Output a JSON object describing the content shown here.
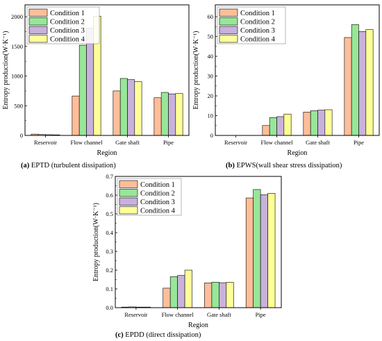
{
  "colors": {
    "condition1": "#FDBE99",
    "condition2": "#98E698",
    "condition3": "#C8B2DC",
    "condition4": "#FFFF99",
    "edge": "#000000"
  },
  "chart_data": [
    {
      "id": "a",
      "type": "bar",
      "caption_label": "(a)",
      "caption_text": " EPTD (turbulent dissipation)",
      "title": "",
      "xlabel": "Region",
      "ylabel": "Entropy production(W·K⁻¹)",
      "categories": [
        "Reservoir",
        "Flow channel",
        "Gate shaft",
        "Pipe"
      ],
      "ylim": [
        0,
        2200
      ],
      "yticks": [
        0,
        500,
        1000,
        1500,
        2000
      ],
      "ytick_labels": [
        "0",
        "500",
        "1000",
        "1500",
        "2000"
      ],
      "legend_position": "top-left",
      "series": [
        {
          "name": "Condition 1",
          "values": [
            22,
            665,
            750,
            635
          ]
        },
        {
          "name": "Condition 2",
          "values": [
            15,
            1520,
            960,
            725
          ]
        },
        {
          "name": "Condition 3",
          "values": [
            12,
            1805,
            940,
            700
          ]
        },
        {
          "name": "Condition 4",
          "values": [
            10,
            2010,
            905,
            705
          ]
        }
      ]
    },
    {
      "id": "b",
      "type": "bar",
      "caption_label": "(b)",
      "caption_text": " EPWS(wall shear stress dissipation)",
      "title": "",
      "xlabel": "Region",
      "ylabel": "Entropy production(W·K⁻¹)",
      "categories": [
        "Reservoir",
        "Flow channel",
        "Gate shaft",
        "Pipe"
      ],
      "ylim": [
        0,
        66
      ],
      "yticks": [
        0,
        10,
        20,
        30,
        40,
        50,
        60
      ],
      "ytick_labels": [
        "0",
        "10",
        "20",
        "30",
        "40",
        "50",
        "60"
      ],
      "legend_position": "top-left",
      "series": [
        {
          "name": "Condition 1",
          "values": [
            0.02,
            5.0,
            11.8,
            49.5
          ]
        },
        {
          "name": "Condition 2",
          "values": [
            0.02,
            9.0,
            12.5,
            56.0
          ]
        },
        {
          "name": "Condition 3",
          "values": [
            0.02,
            9.5,
            12.8,
            52.5
          ]
        },
        {
          "name": "Condition 4",
          "values": [
            0.02,
            10.8,
            13.0,
            53.5
          ]
        }
      ]
    },
    {
      "id": "c",
      "type": "bar",
      "caption_label": "(c)",
      "caption_text": " EPDD (direct dissipation)",
      "title": "",
      "xlabel": "Region",
      "ylabel": "Entropy production(W·K⁻¹)",
      "categories": [
        "Reservoir",
        "Flow channel",
        "Gate shaft",
        "Pipe"
      ],
      "ylim": [
        0,
        0.7
      ],
      "yticks": [
        0,
        0.1,
        0.2,
        0.3,
        0.4,
        0.5,
        0.6,
        0.7
      ],
      "ytick_labels": [
        "0.0",
        "0.1",
        "0.2",
        "0.3",
        "0.4",
        "0.5",
        "0.6",
        "0.7"
      ],
      "legend_position": "top-left",
      "series": [
        {
          "name": "Condition 1",
          "values": [
            0.003,
            0.104,
            0.132,
            0.585
          ]
        },
        {
          "name": "Condition 2",
          "values": [
            0.004,
            0.165,
            0.136,
            0.63
          ]
        },
        {
          "name": "Condition 3",
          "values": [
            0.003,
            0.172,
            0.133,
            0.602
          ]
        },
        {
          "name": "Condition 4",
          "values": [
            0.003,
            0.2,
            0.135,
            0.61
          ]
        }
      ]
    }
  ]
}
